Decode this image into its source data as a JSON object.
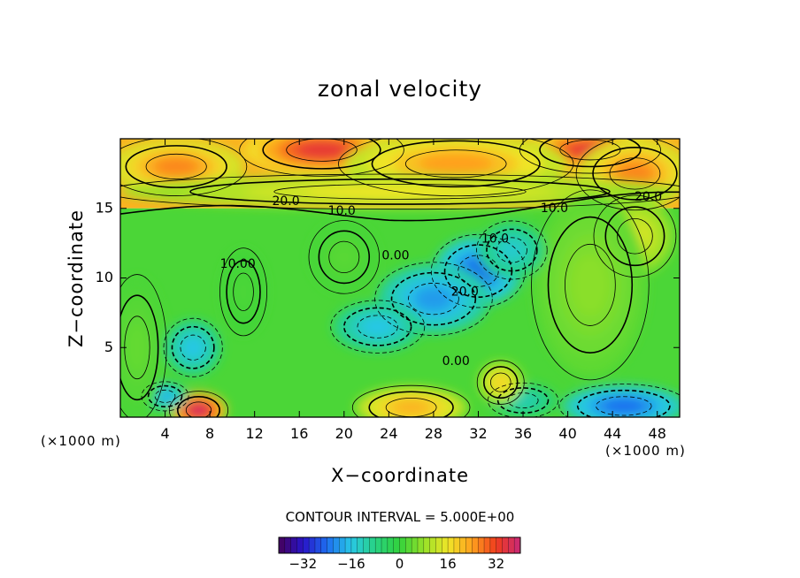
{
  "chart_data": {
    "type": "heatmap",
    "title": "zonal velocity",
    "xlabel": "X−coordinate",
    "ylabel": "Z−coordinate",
    "x_unit_left": "(×1000 m)",
    "x_unit_right": "(×1000 m)",
    "xlim": [
      0,
      50
    ],
    "ylim": [
      0,
      20
    ],
    "x_ticks": [
      4,
      8,
      12,
      16,
      20,
      24,
      28,
      32,
      36,
      40,
      44,
      48
    ],
    "y_ticks": [
      5,
      10,
      15
    ],
    "contour_interval_label": "CONTOUR INTERVAL = 5.000E+00",
    "colorbar": {
      "range": [
        -40,
        40
      ],
      "ticks": [
        -32,
        -16,
        0,
        16,
        32
      ],
      "tick_labels": [
        "−32",
        "−16",
        "0",
        "16",
        "32"
      ]
    },
    "contour_labels": [
      {
        "text": "20.0",
        "x": 14.8,
        "y": 15.5
      },
      {
        "text": "10.0",
        "x": 19.8,
        "y": 14.8
      },
      {
        "text": "10.0",
        "x": 38.8,
        "y": 15.0
      },
      {
        "text": "20.0",
        "x": 47.2,
        "y": 15.8
      },
      {
        "text": "0.00",
        "x": 24.6,
        "y": 11.6
      },
      {
        "text": "10.0",
        "x": 33.5,
        "y": 12.8
      },
      {
        "text": "10.00",
        "x": 10.5,
        "y": 11.0
      },
      {
        "text": "20.0",
        "x": 30.8,
        "y": 9.0
      },
      {
        "text": "0.00",
        "x": 30.0,
        "y": 4.0
      }
    ],
    "features": [
      {
        "cx": 18,
        "cy": 19.2,
        "rx": 7,
        "ry": 1.8,
        "v": 34
      },
      {
        "cx": 42,
        "cy": 19.2,
        "rx": 6,
        "ry": 1.6,
        "v": 34
      },
      {
        "cx": 5,
        "cy": 18.0,
        "rx": 6,
        "ry": 2.0,
        "v": 26
      },
      {
        "cx": 30,
        "cy": 18.2,
        "rx": 10,
        "ry": 2.2,
        "v": 24
      },
      {
        "cx": 46,
        "cy": 17.5,
        "rx": 5,
        "ry": 2.5,
        "v": 26
      },
      {
        "cx": 25,
        "cy": 16.2,
        "rx": 25,
        "ry": 1.2,
        "v": 16
      },
      {
        "cx": 46,
        "cy": 13.0,
        "rx": 3.5,
        "ry": 2.8,
        "v": 14
      },
      {
        "cx": 42,
        "cy": 9.5,
        "rx": 5,
        "ry": 6.5,
        "v": 7
      },
      {
        "cx": 32,
        "cy": 10.5,
        "rx": 4,
        "ry": 2.5,
        "v": -24
      },
      {
        "cx": 28,
        "cy": 8.5,
        "rx": 5,
        "ry": 2.5,
        "v": -20
      },
      {
        "cx": 23,
        "cy": 6.5,
        "rx": 4,
        "ry": 1.8,
        "v": -16
      },
      {
        "cx": 35,
        "cy": 12.0,
        "rx": 3,
        "ry": 2.0,
        "v": -14
      },
      {
        "cx": 6.5,
        "cy": 5.0,
        "rx": 2.5,
        "ry": 2.0,
        "v": -16
      },
      {
        "cx": 45,
        "cy": 0.8,
        "rx": 5.5,
        "ry": 1.5,
        "v": -24
      },
      {
        "cx": 36,
        "cy": 1.2,
        "rx": 3.0,
        "ry": 1.2,
        "v": -12
      },
      {
        "cx": 34,
        "cy": 2.5,
        "rx": 2.0,
        "ry": 1.5,
        "v": 18
      },
      {
        "cx": 26,
        "cy": 0.7,
        "rx": 5,
        "ry": 1.5,
        "v": 22
      },
      {
        "cx": 7.0,
        "cy": 0.5,
        "rx": 2.5,
        "ry": 1.3,
        "v": 38
      },
      {
        "cx": 4.0,
        "cy": 1.5,
        "rx": 2.0,
        "ry": 1.0,
        "v": -18
      },
      {
        "cx": 1.5,
        "cy": 5.0,
        "rx": 2.5,
        "ry": 5.0,
        "v": 4
      },
      {
        "cx": 20,
        "cy": 11.5,
        "rx": 3,
        "ry": 2.5,
        "v": 3
      },
      {
        "cx": 11,
        "cy": 9.0,
        "rx": 2.0,
        "ry": 3.0,
        "v": 2
      }
    ]
  }
}
